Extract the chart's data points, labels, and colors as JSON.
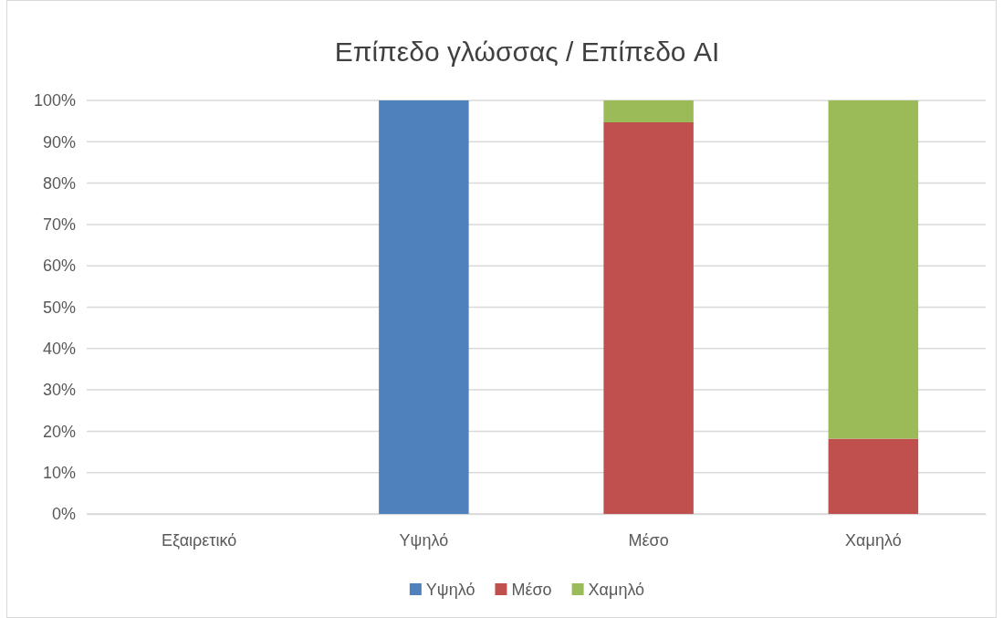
{
  "chart_data": {
    "type": "bar",
    "title": "Επίπεδο γλώσσας / Επίπεδο AI",
    "categories": [
      "Εξαιρετικό",
      "Υψηλό",
      "Μέσο",
      "Χαμηλό"
    ],
    "stacked": true,
    "series": [
      {
        "name": "Υψηλό",
        "color": "#4f81bd",
        "values": [
          0,
          100,
          0,
          0
        ]
      },
      {
        "name": "Μέσο",
        "color": "#c0504d",
        "values": [
          0,
          0,
          94.7,
          18.2
        ]
      },
      {
        "name": "Χαμηλό",
        "color": "#9bbb59",
        "values": [
          0,
          0,
          5.3,
          81.8
        ]
      }
    ],
    "ylim": [
      0,
      100
    ],
    "yticks": [
      {
        "value": 0,
        "label": "0%"
      },
      {
        "value": 10,
        "label": "10%"
      },
      {
        "value": 20,
        "label": "20%"
      },
      {
        "value": 30,
        "label": "30%"
      },
      {
        "value": 40,
        "label": "40%"
      },
      {
        "value": 50,
        "label": "50%"
      },
      {
        "value": 60,
        "label": "60%"
      },
      {
        "value": 70,
        "label": "70%"
      },
      {
        "value": 80,
        "label": "80%"
      },
      {
        "value": 90,
        "label": "90%"
      },
      {
        "value": 100,
        "label": "100%"
      }
    ],
    "grid": "y",
    "legend": "bottom"
  }
}
